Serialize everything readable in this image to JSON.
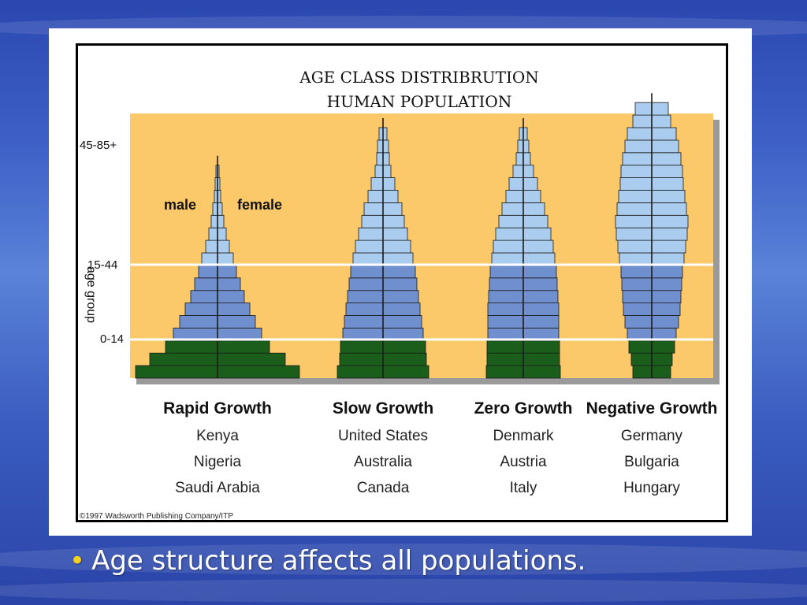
{
  "slide": {
    "bullet_text": "Age structure affects all populations.",
    "bullet_color": "#f2d21a"
  },
  "chart_data": {
    "type": "population-pyramid",
    "title_lines": [
      "AGE CLASS DISTRIBRUTION",
      "HUMAN POPULATION"
    ],
    "ylabel": "age group",
    "age_bands": [
      "0-14",
      "15-44",
      "45-85+"
    ],
    "sex_labels": {
      "male": "male",
      "female": "female"
    },
    "colors": {
      "plot_bg": "#fcc96a",
      "youth": "#1b5e1b",
      "middle": "#6f8fcf",
      "old": "#a9ccef",
      "divider": "#ffffff"
    },
    "levels_note": "half-widths per 5-year row from bottom (0) to top",
    "pyramids": [
      {
        "name": "Rapid Growth",
        "countries": [
          "Kenya",
          "Nigeria",
          "Saudi Arabia"
        ],
        "halfwidths": [
          104,
          86,
          66,
          56,
          48,
          41,
          34,
          29,
          24,
          20,
          15,
          11,
          8,
          6,
          4,
          3,
          2
        ]
      },
      {
        "name": "Slow Growth",
        "countries": [
          "United States",
          "Australia",
          "Canada"
        ],
        "halfwidths": [
          58,
          55,
          54,
          51,
          49,
          47,
          45,
          43,
          41,
          38,
          35,
          31,
          27,
          24,
          19,
          15,
          10,
          8,
          7,
          5
        ]
      },
      {
        "name": "Zero Growth",
        "countries": [
          "Denmark",
          "Austria",
          "Italy"
        ],
        "halfwidths": [
          47,
          46,
          46,
          45,
          45,
          45,
          44,
          43,
          42,
          40,
          38,
          35,
          31,
          27,
          22,
          18,
          13,
          9,
          7,
          5
        ]
      },
      {
        "name": "Negative Growth",
        "countries": [
          "Germany",
          "Bulgaria",
          "Hungary"
        ],
        "halfwidths": [
          24,
          26,
          29,
          31,
          34,
          36,
          37,
          38,
          39,
          41,
          43,
          45,
          46,
          44,
          42,
          40,
          39,
          37,
          34,
          31,
          24,
          21
        ]
      }
    ],
    "copyright": "©1997 Wadsworth Publishing Company/ITP"
  }
}
